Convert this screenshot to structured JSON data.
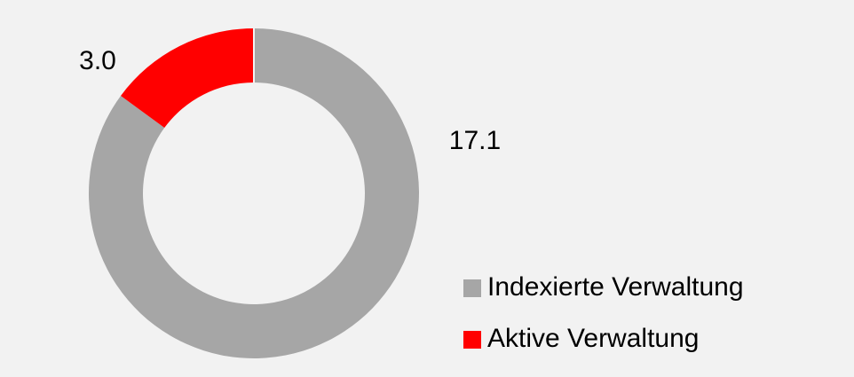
{
  "chart_data": {
    "type": "donut",
    "categories": [
      "Indexierte Verwaltung",
      "Aktive Verwaltung"
    ],
    "values": [
      17.1,
      3.0
    ],
    "value_labels": [
      "17.1",
      "3.0"
    ],
    "colors": [
      "#a6a6a6",
      "#ff0000"
    ],
    "legend": "right"
  }
}
